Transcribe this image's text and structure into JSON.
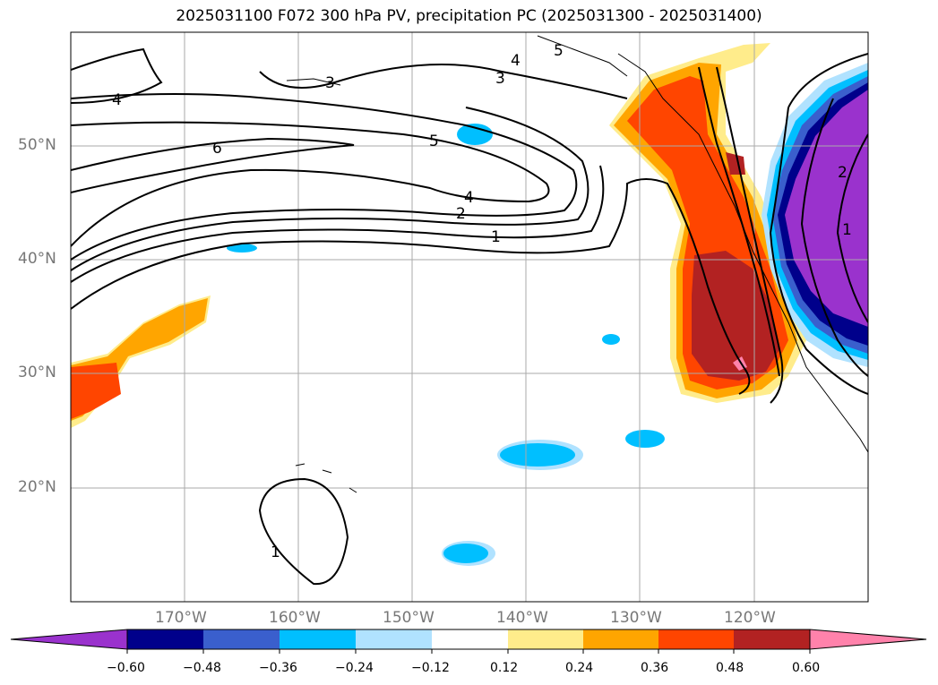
{
  "title": "2025031100 F072 300 hPa PV, precipitation PC (2025031300 - 2025031400)",
  "lat_labels": [
    "50°N",
    "40°N",
    "30°N",
    "20°N"
  ],
  "lon_labels": [
    "170°W",
    "160°W",
    "150°W",
    "140°W",
    "130°W",
    "120°W"
  ],
  "pv_contour_labels": [
    "6",
    "5",
    "4",
    "3",
    "2",
    "1"
  ],
  "colorbar": {
    "ticks": [
      "−0.60",
      "−0.48",
      "−0.36",
      "−0.24",
      "−0.12",
      "0.12",
      "0.24",
      "0.36",
      "0.48",
      "0.60"
    ],
    "colors": [
      "#9a32cd",
      "#00008b",
      "#3a5fcd",
      "#00bfff",
      "#b0e2ff",
      "#ffffff",
      "#ffec8b",
      "#ffa500",
      "#ff4500",
      "#b22222",
      "#ff82ab"
    ]
  },
  "map_extent": {
    "lon": [
      -180,
      -110
    ],
    "lat": [
      10,
      60
    ]
  }
}
